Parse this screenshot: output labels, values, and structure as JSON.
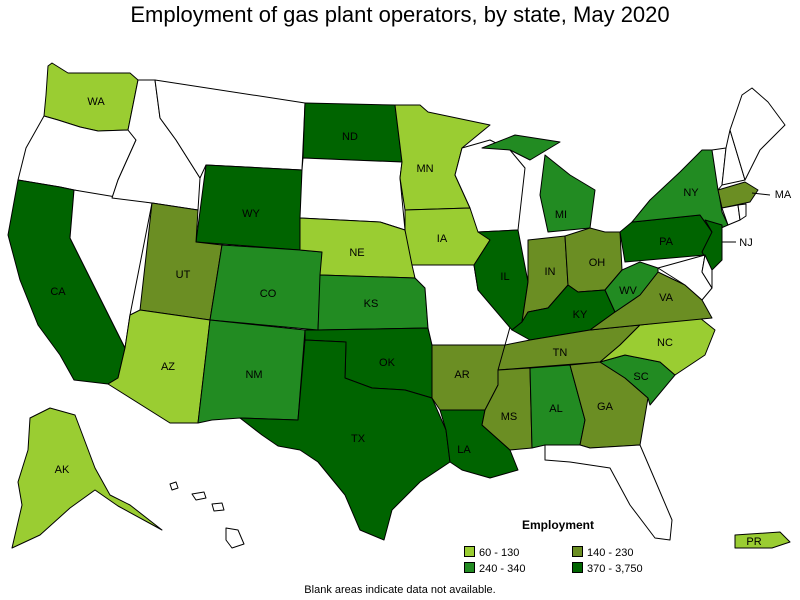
{
  "title": "Employment of gas plant operators, by state, May 2020",
  "legend": {
    "title": "Employment",
    "items": [
      {
        "label": "60 - 130",
        "color": "#9acd32"
      },
      {
        "label": "140 - 230",
        "color": "#6b8e23"
      },
      {
        "label": "240 - 340",
        "color": "#228b22"
      },
      {
        "label": "370 - 3,750",
        "color": "#006400"
      }
    ]
  },
  "footnote": "Blank areas indicate data not available.",
  "colors": {
    "no_data": "#ffffff",
    "border": "#000000"
  },
  "states": {
    "WA": {
      "label": "WA",
      "class": 0
    },
    "OR": {
      "label": "",
      "class": -1
    },
    "CA": {
      "label": "CA",
      "class": 3
    },
    "NV": {
      "label": "",
      "class": -1
    },
    "ID": {
      "label": "",
      "class": -1
    },
    "MT": {
      "label": "",
      "class": -1
    },
    "WY": {
      "label": "WY",
      "class": 3
    },
    "UT": {
      "label": "UT",
      "class": 1
    },
    "AZ": {
      "label": "AZ",
      "class": 0
    },
    "CO": {
      "label": "CO",
      "class": 2
    },
    "NM": {
      "label": "NM",
      "class": 2
    },
    "ND": {
      "label": "ND",
      "class": 3
    },
    "SD": {
      "label": "",
      "class": -1
    },
    "NE": {
      "label": "NE",
      "class": 0
    },
    "KS": {
      "label": "KS",
      "class": 2
    },
    "OK": {
      "label": "OK",
      "class": 3
    },
    "TX": {
      "label": "TX",
      "class": 3
    },
    "MN": {
      "label": "MN",
      "class": 0
    },
    "IA": {
      "label": "IA",
      "class": 0
    },
    "MO": {
      "label": "",
      "class": -1
    },
    "AR": {
      "label": "AR",
      "class": 1
    },
    "LA": {
      "label": "LA",
      "class": 3
    },
    "WI": {
      "label": "",
      "class": -1
    },
    "IL": {
      "label": "IL",
      "class": 3
    },
    "MI": {
      "label": "MI",
      "class": 2
    },
    "IN": {
      "label": "IN",
      "class": 1
    },
    "OH": {
      "label": "OH",
      "class": 1
    },
    "KY": {
      "label": "KY",
      "class": 3
    },
    "TN": {
      "label": "TN",
      "class": 1
    },
    "MS": {
      "label": "MS",
      "class": 1
    },
    "AL": {
      "label": "AL",
      "class": 2
    },
    "GA": {
      "label": "GA",
      "class": 1
    },
    "FL": {
      "label": "",
      "class": -1
    },
    "SC": {
      "label": "SC",
      "class": 2
    },
    "NC": {
      "label": "NC",
      "class": 0
    },
    "VA": {
      "label": "VA",
      "class": 1
    },
    "WV": {
      "label": "WV",
      "class": 2
    },
    "PA": {
      "label": "PA",
      "class": 3
    },
    "NY": {
      "label": "NY",
      "class": 2
    },
    "NJ": {
      "label": "NJ",
      "class": 3
    },
    "MD": {
      "label": "",
      "class": -1
    },
    "DE": {
      "label": "",
      "class": -1
    },
    "VT": {
      "label": "",
      "class": -1
    },
    "NH": {
      "label": "",
      "class": -1
    },
    "ME": {
      "label": "",
      "class": -1
    },
    "MA": {
      "label": "MA",
      "class": 1
    },
    "CT": {
      "label": "",
      "class": -1
    },
    "RI": {
      "label": "",
      "class": -1
    },
    "AK": {
      "label": "AK",
      "class": 0
    },
    "HI": {
      "label": "",
      "class": -1
    },
    "PR": {
      "label": "PR",
      "class": 0
    }
  }
}
